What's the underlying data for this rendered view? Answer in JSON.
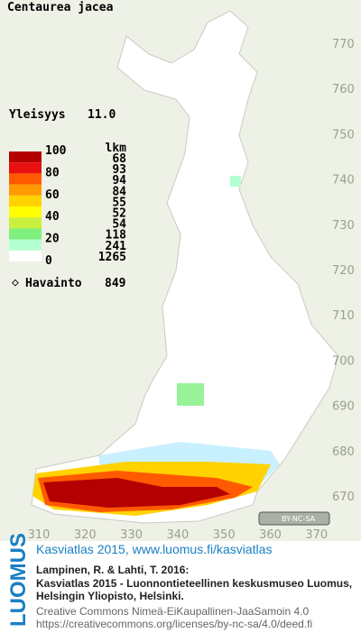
{
  "map": {
    "title": "Centaurea jacea",
    "frequency_label": "Yleisyys",
    "frequency": "11.0",
    "legend": {
      "scale_labels": [
        100,
        80,
        60,
        40,
        20,
        0
      ],
      "count_header": "lkm",
      "counts": [
        68,
        93,
        94,
        84,
        55,
        52,
        54,
        118,
        241,
        1265
      ],
      "colors": [
        "#b40000",
        "#e81010",
        "#ff5a00",
        "#ff9a00",
        "#ffd200",
        "#ffff00",
        "#c8f03c",
        "#7ef07e",
        "#b4ffd2",
        "#ffffff"
      ]
    },
    "observation_label": "Havainto",
    "observations": 849,
    "north_ticks": [
      770,
      760,
      750,
      740,
      730,
      720,
      710,
      700,
      690,
      680,
      670
    ],
    "east_ticks": [
      310,
      320,
      330,
      340,
      350,
      360,
      370
    ],
    "license_badge": "BY-NC-SA",
    "footer": {
      "brand": "LUOMUS",
      "link": "Kasviatlas 2015, www.luomus.fi/kasviatlas",
      "citation": [
        "Lampinen, R. & Lahti, T. 2016:",
        "Kasviatlas 2015 - Luonnontieteellinen keskusmuseo Luomus,",
        "Helsingin Yliopisto, Helsinki."
      ],
      "license": [
        "Creative Commons Nimeä-EiKaupallinen-JaaSamoin 4.0",
        "https://creativecommons.org/licenses/by-nc-sa/4.0/deed.fi"
      ]
    }
  }
}
